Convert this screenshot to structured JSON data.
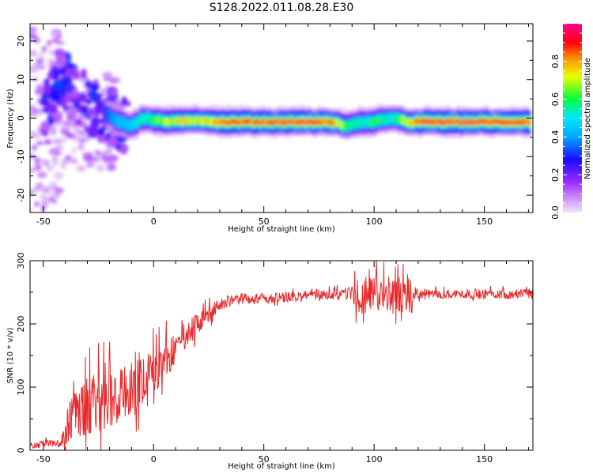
{
  "figure": {
    "title": "S128.2022.011.08.28.E30"
  },
  "chart_data": [
    {
      "type": "heatmap",
      "title": "S128.2022.011.08.28.E30",
      "xlabel": "Height of straight line (km)",
      "ylabel": "Frequency (Hz)",
      "xlim": [
        -56,
        172
      ],
      "ylim": [
        -24.5,
        24.5
      ],
      "x_ticks": [
        -50,
        0,
        50,
        100,
        150
      ],
      "y_ticks": [
        -20,
        -10,
        0,
        10,
        20
      ],
      "colorbar": {
        "label": "Normalized spectral amplitude",
        "range": [
          0.0,
          1.0
        ],
        "ticks": [
          0.0,
          0.2,
          0.4,
          0.6,
          0.8
        ],
        "colormap": [
          "#f2e4f7",
          "#9b2cff",
          "#1a0bff",
          "#00e5ff",
          "#00ff3c",
          "#e9ff00",
          "#ff8a00",
          "#ff0010",
          "#ff0090"
        ]
      },
      "peak_track": [
        {
          "x": -50,
          "f": 0.0,
          "a": 0.3
        },
        {
          "x": -43,
          "f": 10.0,
          "a": 0.25
        },
        {
          "x": -40,
          "f": 9.0,
          "a": 0.22
        },
        {
          "x": -35,
          "f": 6.0,
          "a": 0.2
        },
        {
          "x": -30,
          "f": 4.0,
          "a": 0.22
        },
        {
          "x": -25,
          "f": 2.0,
          "a": 0.28
        },
        {
          "x": -20,
          "f": 0.5,
          "a": 0.35
        },
        {
          "x": -15,
          "f": -1.0,
          "a": 0.45
        },
        {
          "x": -10,
          "f": -2.0,
          "a": 0.5
        },
        {
          "x": -5,
          "f": 0.0,
          "a": 0.55
        },
        {
          "x": 0,
          "f": -0.5,
          "a": 0.6
        },
        {
          "x": 10,
          "f": -1.0,
          "a": 0.72
        },
        {
          "x": 20,
          "f": -0.5,
          "a": 0.7
        },
        {
          "x": 30,
          "f": -1.0,
          "a": 0.8
        },
        {
          "x": 40,
          "f": -1.0,
          "a": 0.85
        },
        {
          "x": 50,
          "f": -1.0,
          "a": 0.88
        },
        {
          "x": 60,
          "f": -1.0,
          "a": 0.9
        },
        {
          "x": 70,
          "f": -1.0,
          "a": 0.9
        },
        {
          "x": 80,
          "f": -1.0,
          "a": 0.85
        },
        {
          "x": 88,
          "f": -2.0,
          "a": 0.55
        },
        {
          "x": 95,
          "f": -1.0,
          "a": 0.55
        },
        {
          "x": 100,
          "f": -1.0,
          "a": 0.6
        },
        {
          "x": 108,
          "f": 0.0,
          "a": 0.55
        },
        {
          "x": 115,
          "f": -1.0,
          "a": 0.7
        },
        {
          "x": 120,
          "f": -1.0,
          "a": 0.88
        },
        {
          "x": 130,
          "f": -1.0,
          "a": 0.92
        },
        {
          "x": 140,
          "f": -1.0,
          "a": 0.92
        },
        {
          "x": 150,
          "f": -1.0,
          "a": 0.9
        },
        {
          "x": 160,
          "f": -1.0,
          "a": 0.88
        },
        {
          "x": 170,
          "f": -1.0,
          "a": 0.85
        }
      ]
    },
    {
      "type": "line",
      "xlabel": "Height of straight line (km)",
      "ylabel": "SNR (10 * v/v)",
      "xlim": [
        -56,
        172
      ],
      "ylim": [
        0,
        300
      ],
      "x_ticks": [
        -50,
        0,
        50,
        100,
        150
      ],
      "y_ticks": [
        0,
        100,
        200,
        300
      ],
      "series": [
        {
          "color": "#e8282b",
          "envelope": [
            {
              "x": -56,
              "mean": 8,
              "noise": 8
            },
            {
              "x": -42,
              "mean": 12,
              "noise": 12
            },
            {
              "x": -38,
              "mean": 50,
              "noise": 60
            },
            {
              "x": -30,
              "mean": 70,
              "noise": 80
            },
            {
              "x": -20,
              "mean": 90,
              "noise": 90
            },
            {
              "x": -10,
              "mean": 105,
              "noise": 80
            },
            {
              "x": 0,
              "mean": 130,
              "noise": 70
            },
            {
              "x": 10,
              "mean": 160,
              "noise": 50
            },
            {
              "x": 20,
              "mean": 200,
              "noise": 30
            },
            {
              "x": 30,
              "mean": 232,
              "noise": 18
            },
            {
              "x": 40,
              "mean": 240,
              "noise": 14
            },
            {
              "x": 60,
              "mean": 242,
              "noise": 14
            },
            {
              "x": 88,
              "mean": 248,
              "noise": 16
            },
            {
              "x": 93,
              "mean": 245,
              "noise": 55
            },
            {
              "x": 100,
              "mean": 245,
              "noise": 50
            },
            {
              "x": 108,
              "mean": 245,
              "noise": 50
            },
            {
              "x": 116,
              "mean": 245,
              "noise": 45
            },
            {
              "x": 120,
              "mean": 247,
              "noise": 12
            },
            {
              "x": 172,
              "mean": 248,
              "noise": 14
            }
          ]
        }
      ]
    }
  ]
}
